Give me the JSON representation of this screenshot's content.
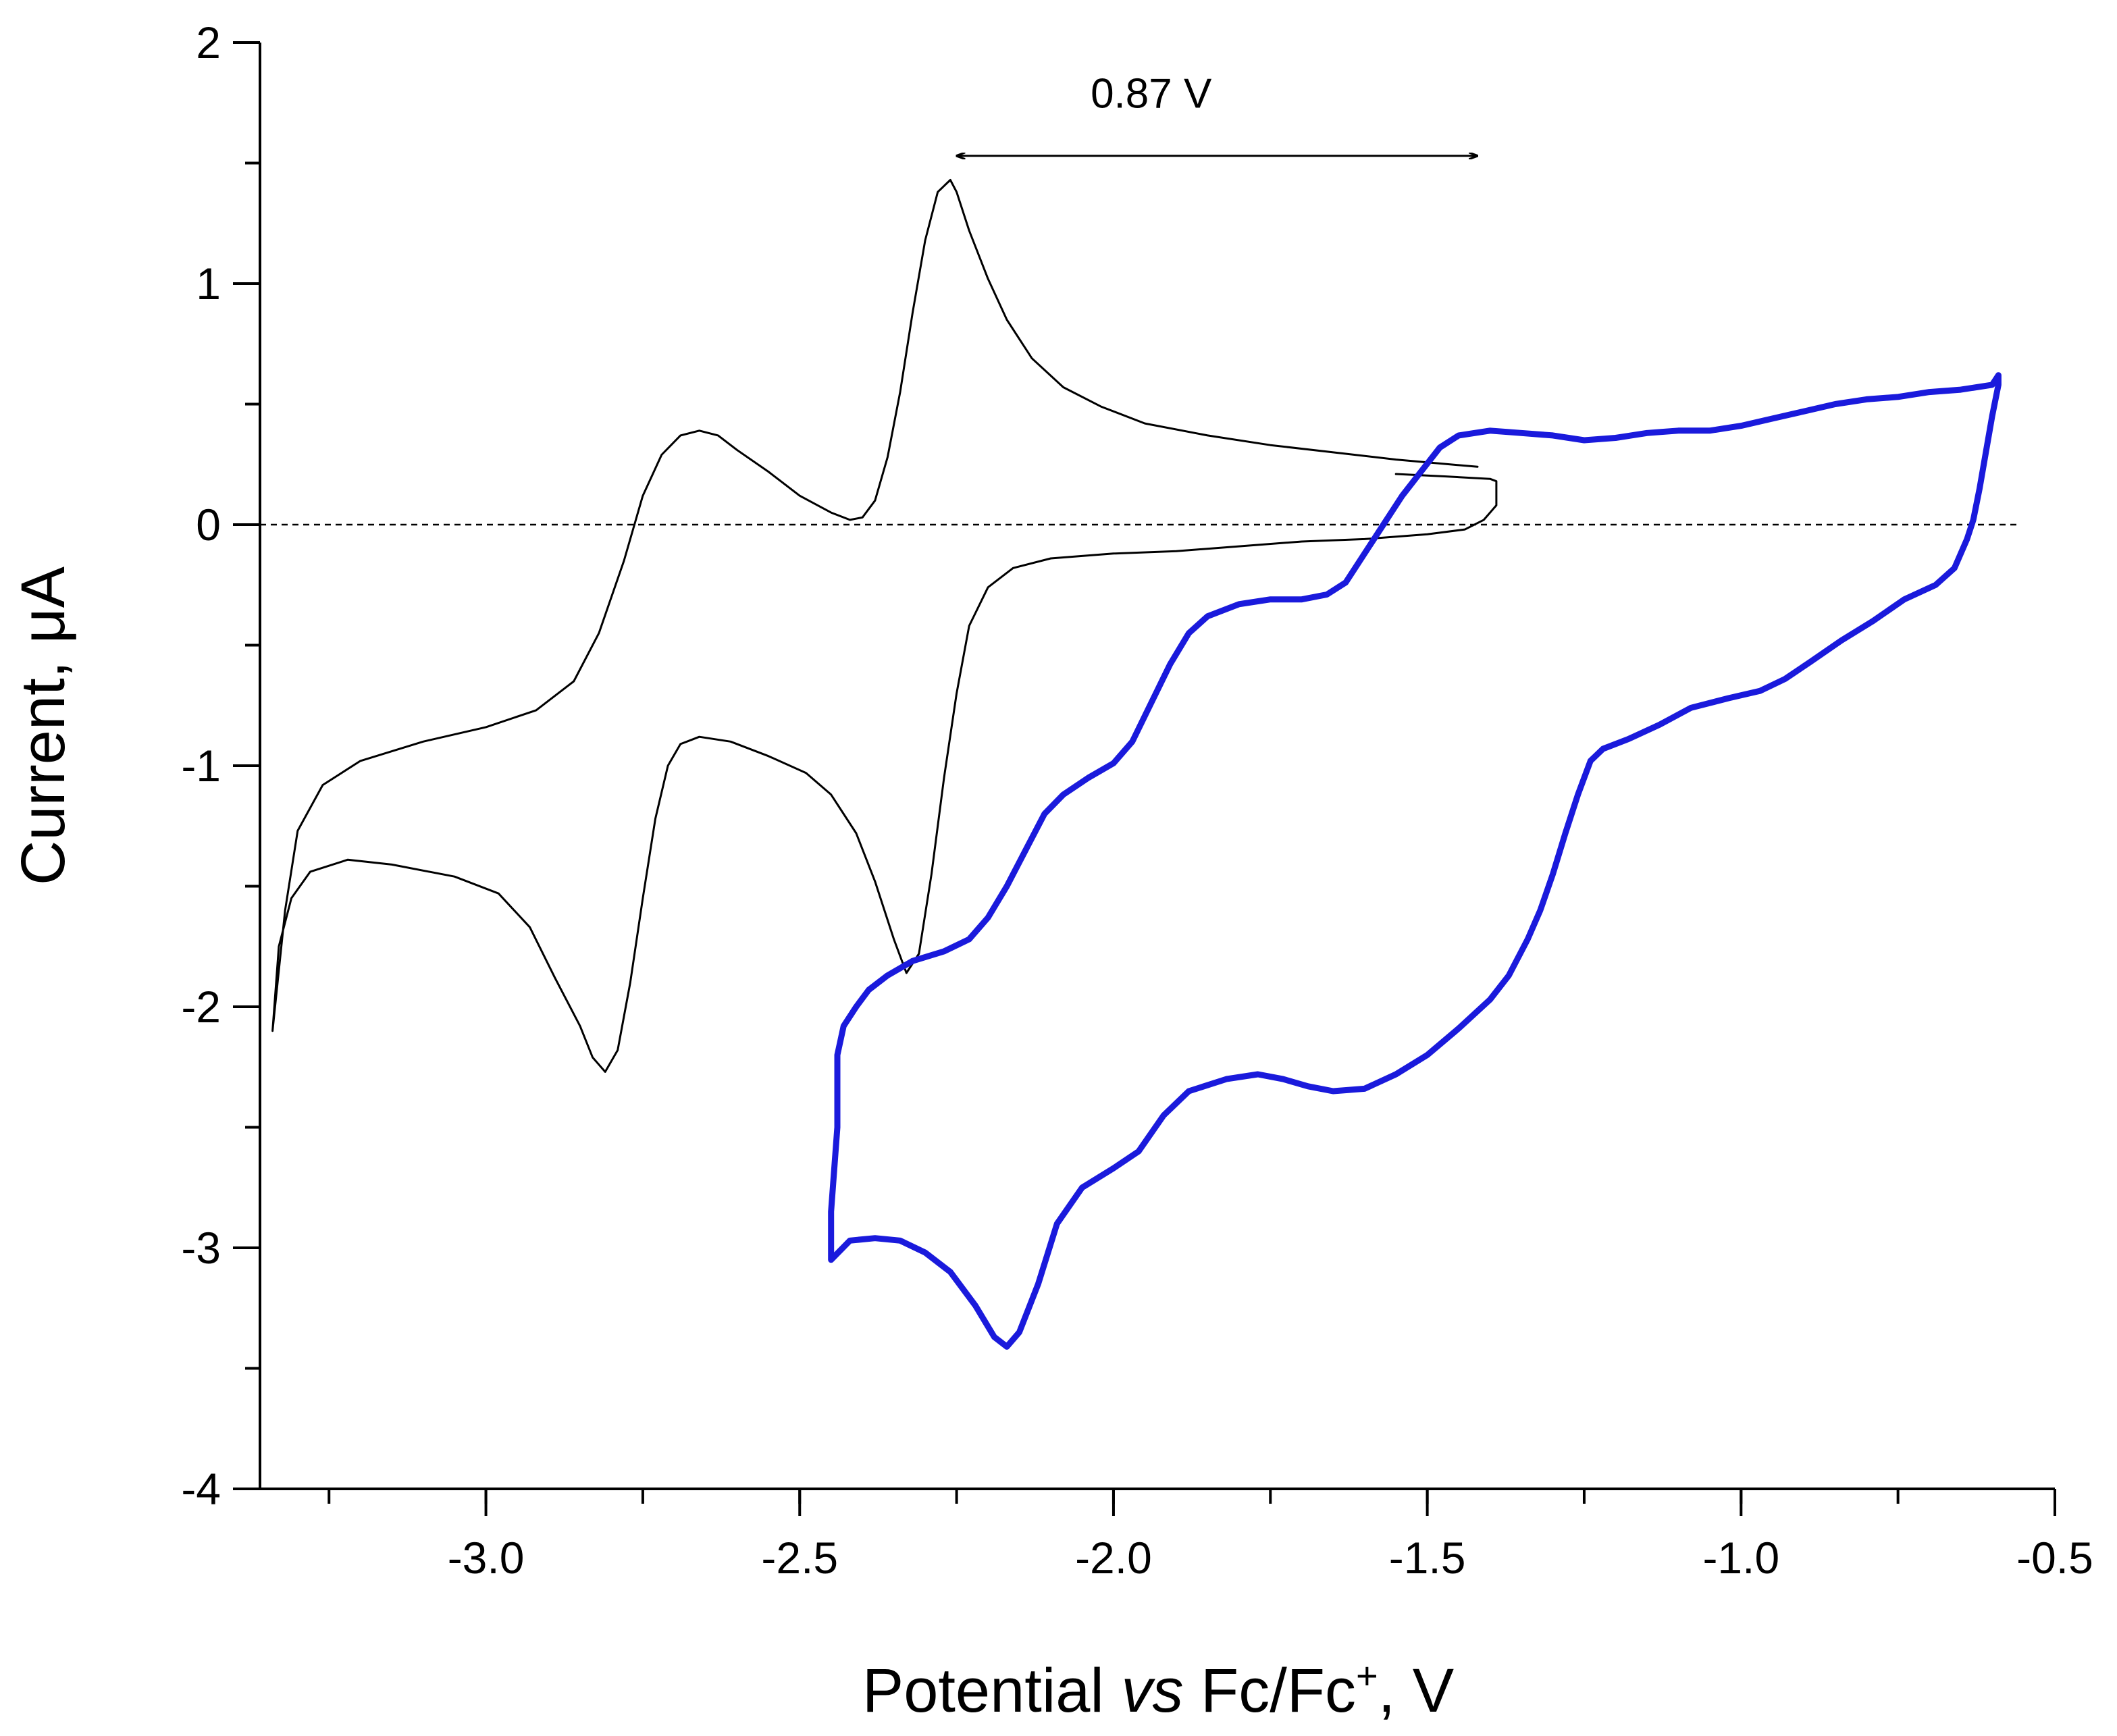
{
  "chart_data": {
    "type": "line",
    "title": "",
    "xlabel": {
      "prefix": "Potential ",
      "italic": "vs",
      "mid": " Fc/Fc",
      "sup": "+",
      "suffix": ", V"
    },
    "ylabel": "Current, μA",
    "xlim": [
      -3.36,
      -0.5
    ],
    "ylim": [
      -4,
      2
    ],
    "x_ticks": [
      -3.0,
      -2.5,
      -2.0,
      -1.5,
      -1.0,
      -0.5
    ],
    "x_tick_labels": [
      "-3.0",
      "-2.5",
      "-2.0",
      "-1.5",
      "-1.0",
      "-0.5"
    ],
    "x_minor_ticks": [
      -3.25,
      -3.0,
      -2.75,
      -2.5,
      -2.25,
      -2.0,
      -1.75,
      -1.5,
      -1.25,
      -1.0,
      -0.75,
      -0.5
    ],
    "y_ticks": [
      2,
      1,
      0,
      -1,
      -2,
      -3,
      -4
    ],
    "y_tick_labels": [
      "2",
      "1",
      "0",
      "-1",
      "-2",
      "-3",
      "-4"
    ],
    "y_minor_ticks": [
      1.5,
      0.5,
      -0.5,
      -1.5,
      -2.5,
      -3.5
    ],
    "zero_line": 0,
    "annotation": {
      "text": "0.87 V",
      "x_start": -2.25,
      "x_end": -1.42,
      "y": 1.53,
      "text_x": -1.94,
      "text_y": 1.73
    },
    "series": [
      {
        "name": "black-cv",
        "color": "#000000",
        "width": 3,
        "points": [
          [
            -1.42,
            0.24
          ],
          [
            -1.55,
            0.27
          ],
          [
            -1.65,
            0.3
          ],
          [
            -1.75,
            0.33
          ],
          [
            -1.85,
            0.37
          ],
          [
            -1.95,
            0.42
          ],
          [
            -2.02,
            0.49
          ],
          [
            -2.08,
            0.57
          ],
          [
            -2.13,
            0.69
          ],
          [
            -2.17,
            0.85
          ],
          [
            -2.2,
            1.02
          ],
          [
            -2.23,
            1.22
          ],
          [
            -2.25,
            1.38
          ],
          [
            -2.26,
            1.43
          ],
          [
            -2.28,
            1.38
          ],
          [
            -2.3,
            1.18
          ],
          [
            -2.32,
            0.88
          ],
          [
            -2.34,
            0.55
          ],
          [
            -2.36,
            0.28
          ],
          [
            -2.38,
            0.1
          ],
          [
            -2.4,
            0.03
          ],
          [
            -2.42,
            0.02
          ],
          [
            -2.45,
            0.05
          ],
          [
            -2.5,
            0.12
          ],
          [
            -2.55,
            0.22
          ],
          [
            -2.6,
            0.31
          ],
          [
            -2.63,
            0.37
          ],
          [
            -2.66,
            0.39
          ],
          [
            -2.69,
            0.37
          ],
          [
            -2.72,
            0.29
          ],
          [
            -2.75,
            0.12
          ],
          [
            -2.78,
            -0.15
          ],
          [
            -2.82,
            -0.45
          ],
          [
            -2.86,
            -0.65
          ],
          [
            -2.92,
            -0.77
          ],
          [
            -3.0,
            -0.84
          ],
          [
            -3.1,
            -0.9
          ],
          [
            -3.2,
            -0.98
          ],
          [
            -3.26,
            -1.08
          ],
          [
            -3.3,
            -1.27
          ],
          [
            -3.32,
            -1.6
          ],
          [
            -3.34,
            -2.1
          ],
          [
            -3.33,
            -1.75
          ],
          [
            -3.31,
            -1.55
          ],
          [
            -3.28,
            -1.44
          ],
          [
            -3.22,
            -1.39
          ],
          [
            -3.15,
            -1.41
          ],
          [
            -3.05,
            -1.46
          ],
          [
            -2.98,
            -1.53
          ],
          [
            -2.93,
            -1.67
          ],
          [
            -2.89,
            -1.88
          ],
          [
            -2.85,
            -2.08
          ],
          [
            -2.83,
            -2.21
          ],
          [
            -2.81,
            -2.27
          ],
          [
            -2.79,
            -2.18
          ],
          [
            -2.77,
            -1.9
          ],
          [
            -2.75,
            -1.55
          ],
          [
            -2.73,
            -1.22
          ],
          [
            -2.71,
            -1.0
          ],
          [
            -2.69,
            -0.91
          ],
          [
            -2.66,
            -0.88
          ],
          [
            -2.61,
            -0.9
          ],
          [
            -2.55,
            -0.96
          ],
          [
            -2.49,
            -1.03
          ],
          [
            -2.45,
            -1.12
          ],
          [
            -2.41,
            -1.28
          ],
          [
            -2.38,
            -1.48
          ],
          [
            -2.35,
            -1.72
          ],
          [
            -2.33,
            -1.86
          ],
          [
            -2.31,
            -1.78
          ],
          [
            -2.29,
            -1.45
          ],
          [
            -2.27,
            -1.05
          ],
          [
            -2.25,
            -0.7
          ],
          [
            -2.23,
            -0.42
          ],
          [
            -2.2,
            -0.26
          ],
          [
            -2.16,
            -0.18
          ],
          [
            -2.1,
            -0.14
          ],
          [
            -2.0,
            -0.12
          ],
          [
            -1.9,
            -0.11
          ],
          [
            -1.8,
            -0.09
          ],
          [
            -1.7,
            -0.07
          ],
          [
            -1.6,
            -0.06
          ],
          [
            -1.5,
            -0.04
          ],
          [
            -1.44,
            -0.02
          ],
          [
            -1.41,
            0.02
          ],
          [
            -1.39,
            0.08
          ],
          [
            -1.39,
            0.18
          ],
          [
            -1.4,
            0.19
          ],
          [
            -1.47,
            0.2
          ],
          [
            -1.55,
            0.21
          ]
        ]
      },
      {
        "name": "blue-cv",
        "color": "#1a1adc",
        "width": 9,
        "points": [
          [
            -0.59,
            0.62
          ],
          [
            -0.6,
            0.58
          ],
          [
            -0.65,
            0.56
          ],
          [
            -0.7,
            0.55
          ],
          [
            -0.75,
            0.53
          ],
          [
            -0.8,
            0.52
          ],
          [
            -0.85,
            0.5
          ],
          [
            -0.9,
            0.47
          ],
          [
            -0.95,
            0.44
          ],
          [
            -1.0,
            0.41
          ],
          [
            -1.05,
            0.39
          ],
          [
            -1.1,
            0.39
          ],
          [
            -1.15,
            0.38
          ],
          [
            -1.2,
            0.36
          ],
          [
            -1.25,
            0.35
          ],
          [
            -1.3,
            0.37
          ],
          [
            -1.35,
            0.38
          ],
          [
            -1.4,
            0.39
          ],
          [
            -1.45,
            0.37
          ],
          [
            -1.48,
            0.32
          ],
          [
            -1.51,
            0.22
          ],
          [
            -1.54,
            0.12
          ],
          [
            -1.57,
            0.0
          ],
          [
            -1.6,
            -0.12
          ],
          [
            -1.63,
            -0.24
          ],
          [
            -1.66,
            -0.29
          ],
          [
            -1.7,
            -0.31
          ],
          [
            -1.75,
            -0.31
          ],
          [
            -1.8,
            -0.33
          ],
          [
            -1.85,
            -0.38
          ],
          [
            -1.88,
            -0.45
          ],
          [
            -1.91,
            -0.58
          ],
          [
            -1.94,
            -0.74
          ],
          [
            -1.97,
            -0.9
          ],
          [
            -2.0,
            -0.99
          ],
          [
            -2.04,
            -1.05
          ],
          [
            -2.08,
            -1.12
          ],
          [
            -2.11,
            -1.2
          ],
          [
            -2.14,
            -1.35
          ],
          [
            -2.17,
            -1.5
          ],
          [
            -2.2,
            -1.63
          ],
          [
            -2.23,
            -1.72
          ],
          [
            -2.27,
            -1.77
          ],
          [
            -2.32,
            -1.81
          ],
          [
            -2.36,
            -1.87
          ],
          [
            -2.39,
            -1.93
          ],
          [
            -2.41,
            -2.0
          ],
          [
            -2.43,
            -2.08
          ],
          [
            -2.44,
            -2.2
          ],
          [
            -2.44,
            -2.5
          ],
          [
            -2.45,
            -2.85
          ],
          [
            -2.45,
            -3.05
          ],
          [
            -2.42,
            -2.97
          ],
          [
            -2.38,
            -2.96
          ],
          [
            -2.34,
            -2.97
          ],
          [
            -2.3,
            -3.02
          ],
          [
            -2.26,
            -3.1
          ],
          [
            -2.22,
            -3.24
          ],
          [
            -2.19,
            -3.37
          ],
          [
            -2.17,
            -3.41
          ],
          [
            -2.15,
            -3.35
          ],
          [
            -2.12,
            -3.15
          ],
          [
            -2.09,
            -2.9
          ],
          [
            -2.05,
            -2.75
          ],
          [
            -2.0,
            -2.67
          ],
          [
            -1.96,
            -2.6
          ],
          [
            -1.92,
            -2.45
          ],
          [
            -1.88,
            -2.35
          ],
          [
            -1.82,
            -2.3
          ],
          [
            -1.77,
            -2.28
          ],
          [
            -1.73,
            -2.3
          ],
          [
            -1.69,
            -2.33
          ],
          [
            -1.65,
            -2.35
          ],
          [
            -1.6,
            -2.34
          ],
          [
            -1.55,
            -2.28
          ],
          [
            -1.5,
            -2.2
          ],
          [
            -1.45,
            -2.09
          ],
          [
            -1.4,
            -1.97
          ],
          [
            -1.37,
            -1.87
          ],
          [
            -1.34,
            -1.72
          ],
          [
            -1.32,
            -1.6
          ],
          [
            -1.3,
            -1.45
          ],
          [
            -1.28,
            -1.28
          ],
          [
            -1.26,
            -1.12
          ],
          [
            -1.24,
            -0.98
          ],
          [
            -1.22,
            -0.93
          ],
          [
            -1.18,
            -0.89
          ],
          [
            -1.13,
            -0.83
          ],
          [
            -1.08,
            -0.76
          ],
          [
            -1.02,
            -0.72
          ],
          [
            -0.97,
            -0.69
          ],
          [
            -0.93,
            -0.64
          ],
          [
            -0.89,
            -0.57
          ],
          [
            -0.84,
            -0.48
          ],
          [
            -0.79,
            -0.4
          ],
          [
            -0.74,
            -0.31
          ],
          [
            -0.69,
            -0.25
          ],
          [
            -0.66,
            -0.18
          ],
          [
            -0.64,
            -0.06
          ],
          [
            -0.63,
            0.02
          ],
          [
            -0.62,
            0.15
          ],
          [
            -0.61,
            0.3
          ],
          [
            -0.6,
            0.45
          ],
          [
            -0.59,
            0.58
          ],
          [
            -0.59,
            0.62
          ]
        ]
      }
    ]
  }
}
